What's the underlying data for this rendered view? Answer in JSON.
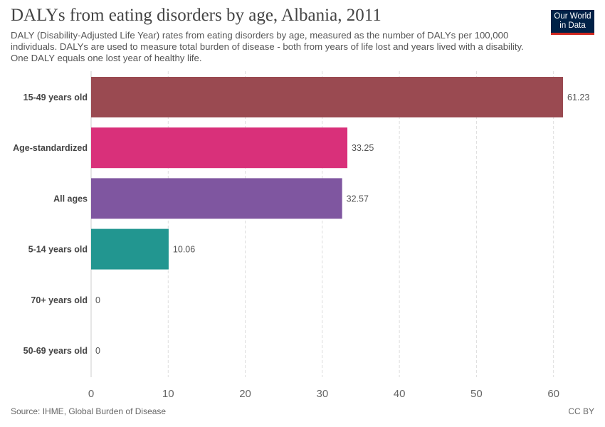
{
  "header": {
    "title": "DALYs from eating disorders by age, Albania, 2011",
    "subtitle": "DALY (Disability-Adjusted Life Year) rates from eating disorders by age, measured as the number of DALYs per 100,000 individuals. DALYs are used to measure total burden of disease - both from years of life lost and years lived with a disability. One DALY equals one lost year of healthy life."
  },
  "logo": {
    "line1": "Our World",
    "line2": "in Data"
  },
  "footer": {
    "source": "Source: IHME, Global Burden of Disease",
    "license": "CC BY"
  },
  "chart_data": {
    "type": "bar",
    "orientation": "horizontal",
    "title": "DALYs from eating disorders by age, Albania, 2011",
    "categories": [
      "15-49 years old",
      "Age-standardized",
      "All ages",
      "5-14 years old",
      "70+ years old",
      "50-69 years old"
    ],
    "values": [
      61.23,
      33.25,
      32.57,
      10.06,
      0,
      0
    ],
    "value_labels": [
      "61.23",
      "33.25",
      "32.57",
      "10.06",
      "0",
      "0"
    ],
    "colors": [
      "#9a4a51",
      "#d9307a",
      "#7f56a0",
      "#229690",
      "#888888",
      "#888888"
    ],
    "xlim": [
      0,
      61.23
    ],
    "xticks": [
      0,
      10,
      20,
      30,
      40,
      50,
      60
    ],
    "grid": true
  }
}
